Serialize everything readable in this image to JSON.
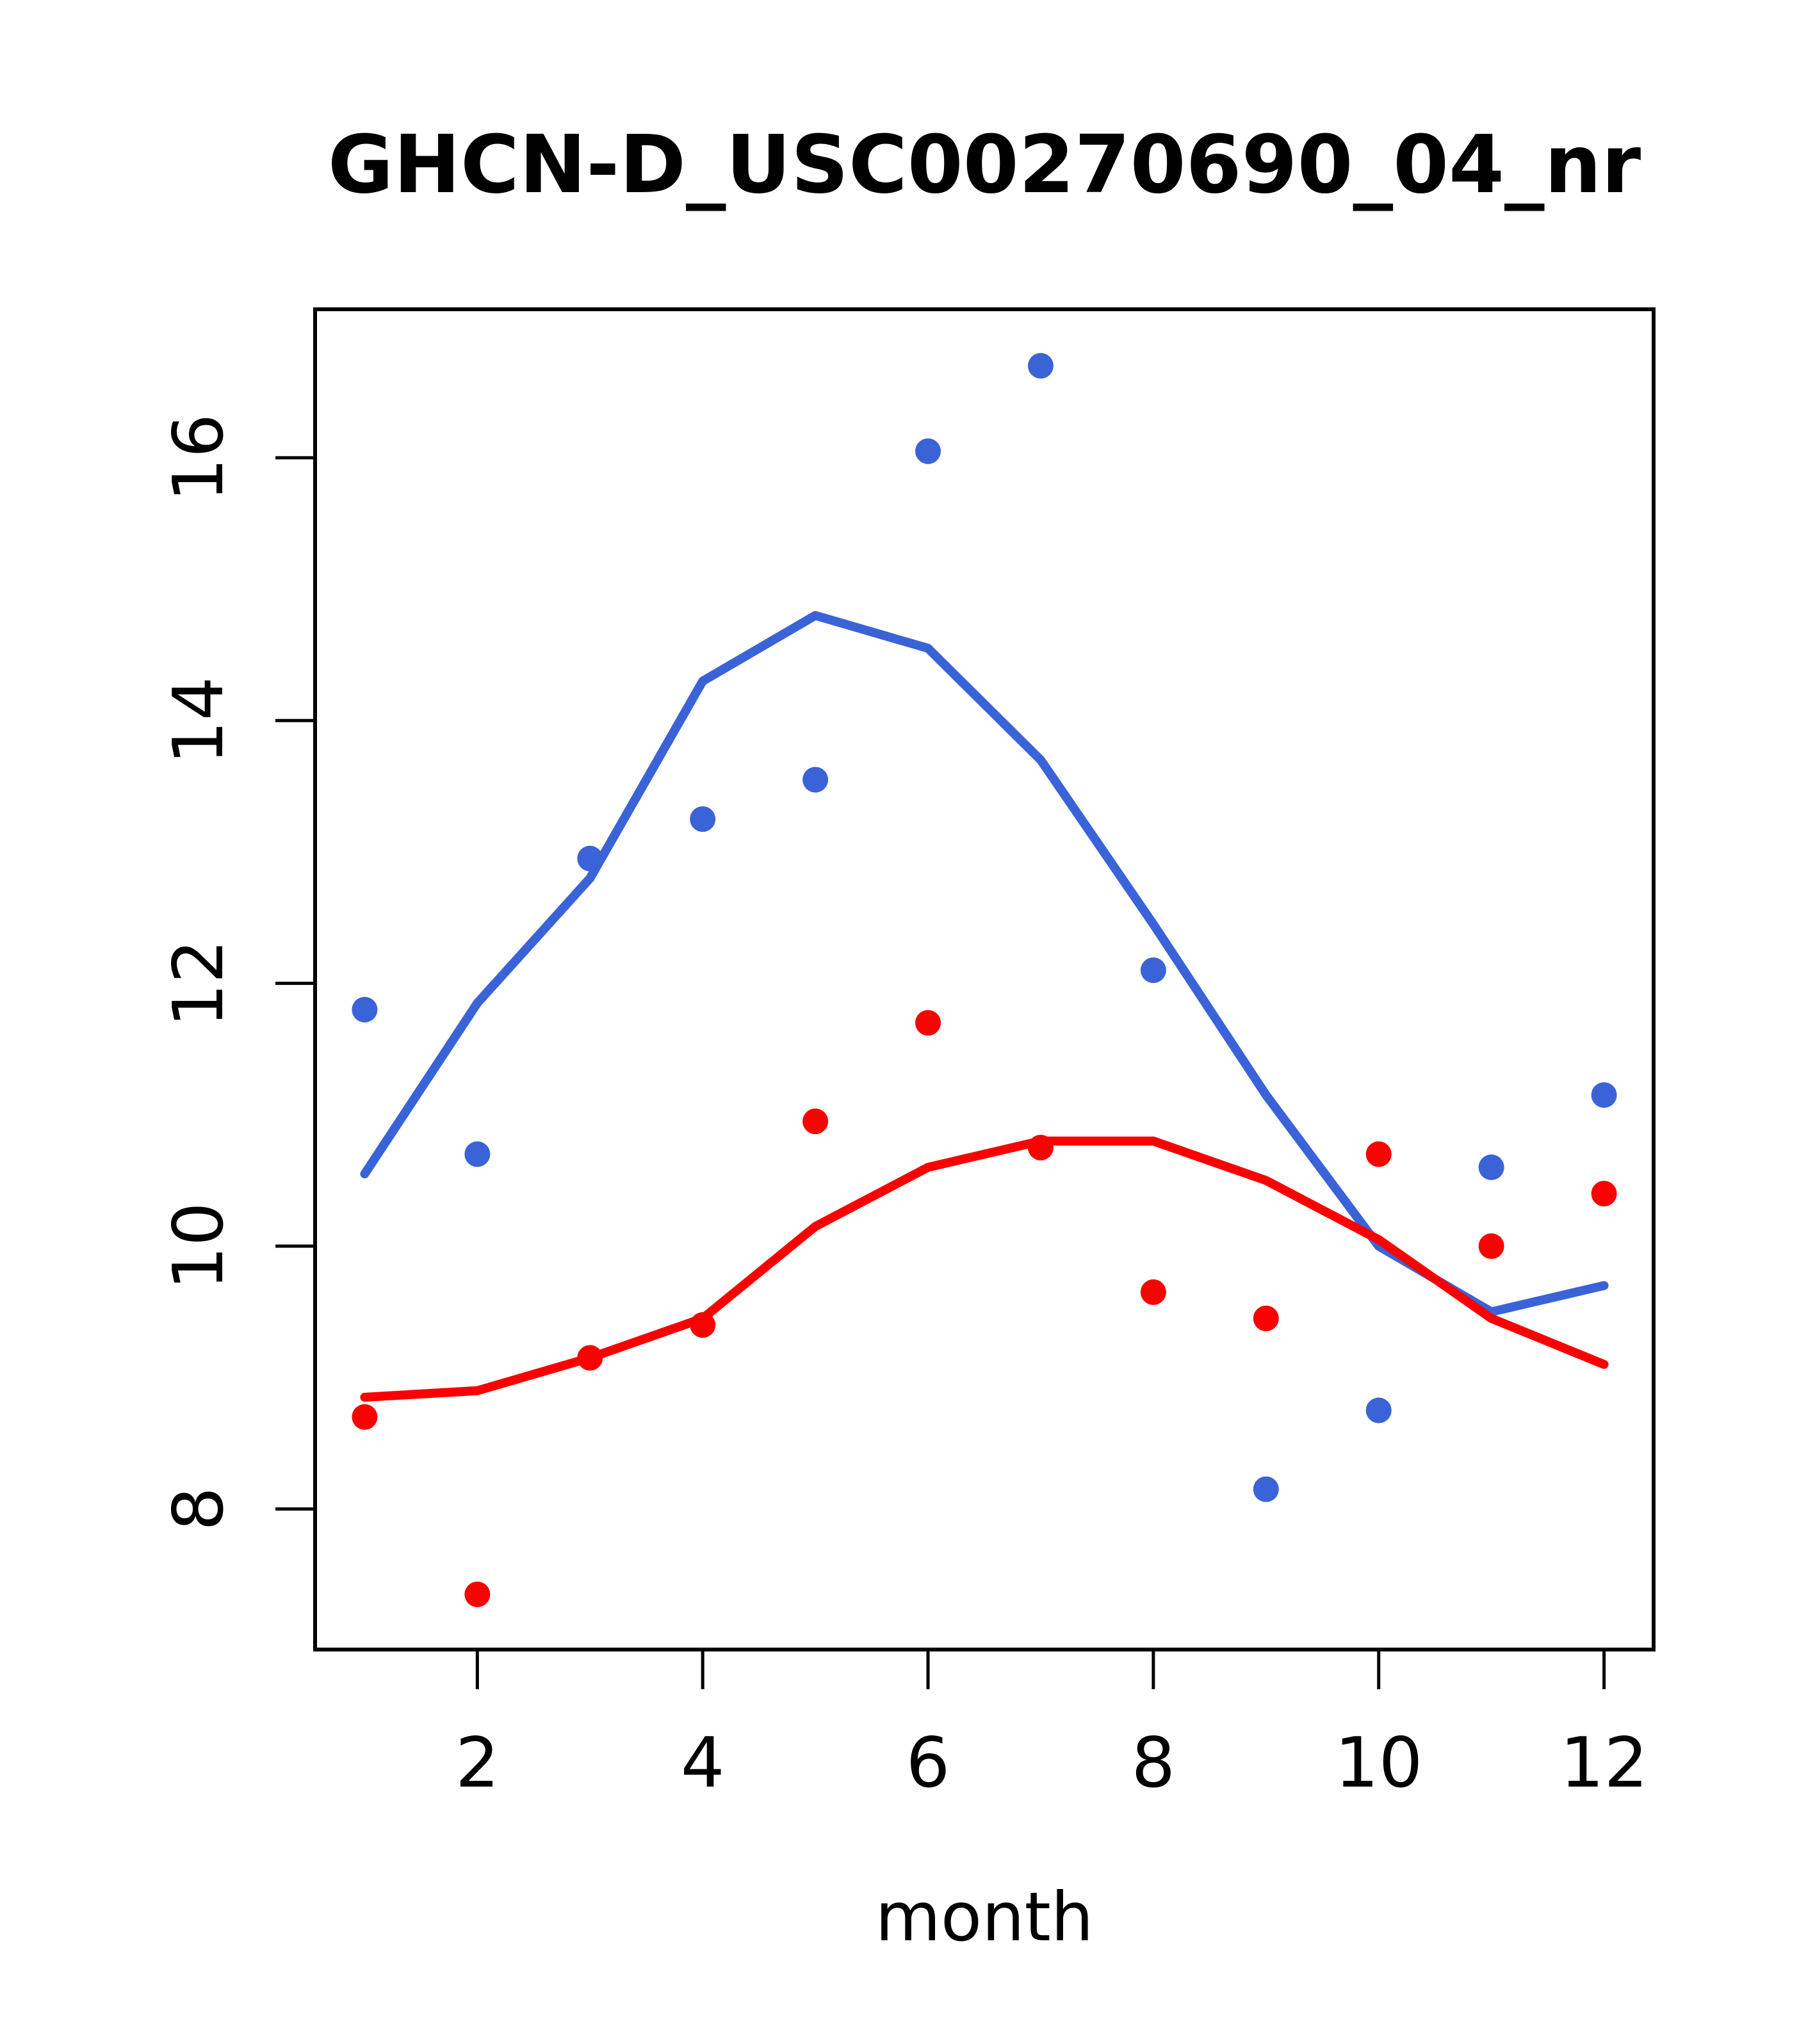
{
  "title": "GHCN-D_USC00270690_04_nr",
  "colors": {
    "blue": "#3b63d8",
    "red": "#fa0000",
    "axis": "#000000",
    "background": "#ffffff"
  },
  "chart_data": {
    "type": "scatter",
    "title": "GHCN-D_USC00270690_04_nr",
    "xlabel": "month",
    "ylabel": "",
    "x": [
      1,
      2,
      3,
      4,
      5,
      6,
      7,
      8,
      9,
      10,
      11,
      12
    ],
    "x_ticks": [
      2,
      4,
      6,
      8,
      10,
      12
    ],
    "y_ticks": [
      8,
      10,
      12,
      14,
      16
    ],
    "xlim": [
      0.56,
      12.44
    ],
    "ylim": [
      6.93,
      17.13
    ],
    "grid": false,
    "legend_position": "none",
    "series": [
      {
        "name": "blue-points",
        "type": "scatter",
        "color": "#3b63d8",
        "values": [
          11.8,
          10.7,
          12.95,
          13.25,
          13.55,
          16.05,
          16.7,
          12.1,
          8.15,
          8.75,
          10.6,
          11.15
        ]
      },
      {
        "name": "blue-smooth-line",
        "type": "line",
        "color": "#3b63d8",
        "values": [
          10.55,
          11.85,
          12.8,
          14.3,
          14.8,
          14.55,
          13.7,
          12.45,
          11.15,
          10.0,
          9.5,
          9.7
        ]
      },
      {
        "name": "red-points",
        "type": "scatter",
        "color": "#fa0000",
        "values": [
          8.7,
          7.35,
          9.15,
          9.4,
          10.95,
          11.7,
          10.75,
          9.65,
          9.45,
          10.7,
          10.0,
          10.4
        ]
      },
      {
        "name": "red-smooth-line",
        "type": "line",
        "color": "#fa0000",
        "values": [
          8.85,
          8.9,
          9.15,
          9.45,
          10.15,
          10.6,
          10.8,
          10.8,
          10.5,
          10.05,
          9.45,
          9.1
        ]
      }
    ]
  }
}
